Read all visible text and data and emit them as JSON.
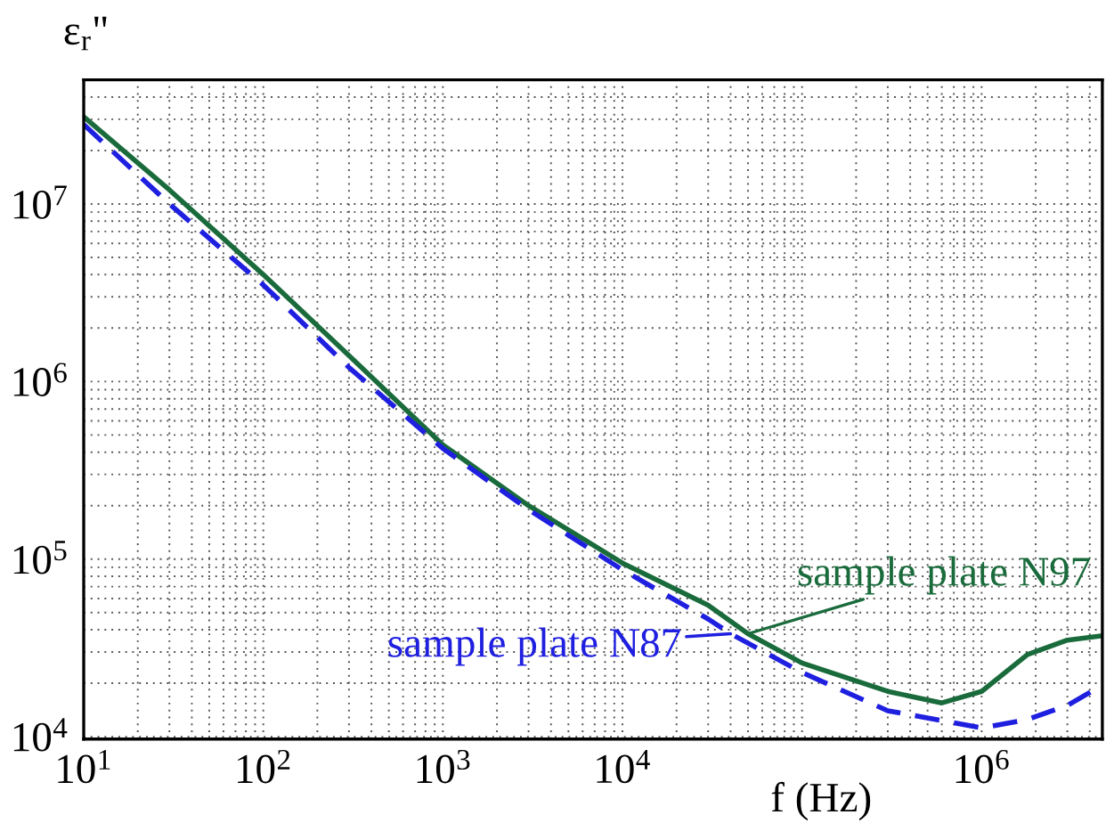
{
  "chart_data": {
    "type": "line",
    "log": "xy",
    "xlabel": "f (Hz)",
    "ylabel": "ε$_{r}$\"",
    "xlim": [
      10,
      4700000
    ],
    "ylim": [
      9700,
      50000000
    ],
    "xticks": [
      {
        "value": 10,
        "label": "10$^{1}$"
      },
      {
        "value": 100,
        "label": "10$^{2}$"
      },
      {
        "value": 1000,
        "label": "10$^{3}$"
      },
      {
        "value": 10000,
        "label": "10$^{4}$"
      },
      {
        "value": 100000,
        "label": null
      },
      {
        "value": 1000000,
        "label": "10$^{6}$"
      }
    ],
    "yticks": [
      {
        "value": 10000,
        "label": "10$^{4}$"
      },
      {
        "value": 100000,
        "label": "10$^{5}$"
      },
      {
        "value": 1000000,
        "label": "10$^{6}$"
      },
      {
        "value": 10000000,
        "label": "10$^{7}$"
      }
    ],
    "grid": true,
    "legend": false,
    "series": [
      {
        "color": "#1a6b3c",
        "line_style": "solid",
        "x": [
          10,
          30,
          100,
          300,
          1000,
          3000,
          10000,
          30000,
          50000,
          100000,
          300000,
          600000,
          1000000,
          1800000,
          3000000,
          4700000
        ],
        "values": [
          31000000,
          12000000,
          4000000,
          1400000,
          440000,
          200000,
          95000,
          55000,
          38000,
          26000,
          18000,
          15500,
          18000,
          29000,
          35000,
          37000
        ]
      },
      {
        "color": "#1f1fe0",
        "line_style": "dashed",
        "x": [
          10,
          30,
          100,
          300,
          1000,
          3000,
          10000,
          30000,
          40000,
          100000,
          300000,
          1000000,
          1800000,
          3000000,
          4700000
        ],
        "values": [
          28000000,
          10000000,
          3500000,
          1200000,
          420000,
          190000,
          87000,
          46000,
          38000,
          23000,
          14000,
          11200,
          12500,
          15000,
          19500
        ]
      }
    ],
    "annotations": [
      {
        "text": "sample plate N97",
        "x": 50000,
        "y": 38000
      },
      {
        "text": "sample plate N87",
        "x": 40000,
        "y": 38000
      }
    ]
  }
}
